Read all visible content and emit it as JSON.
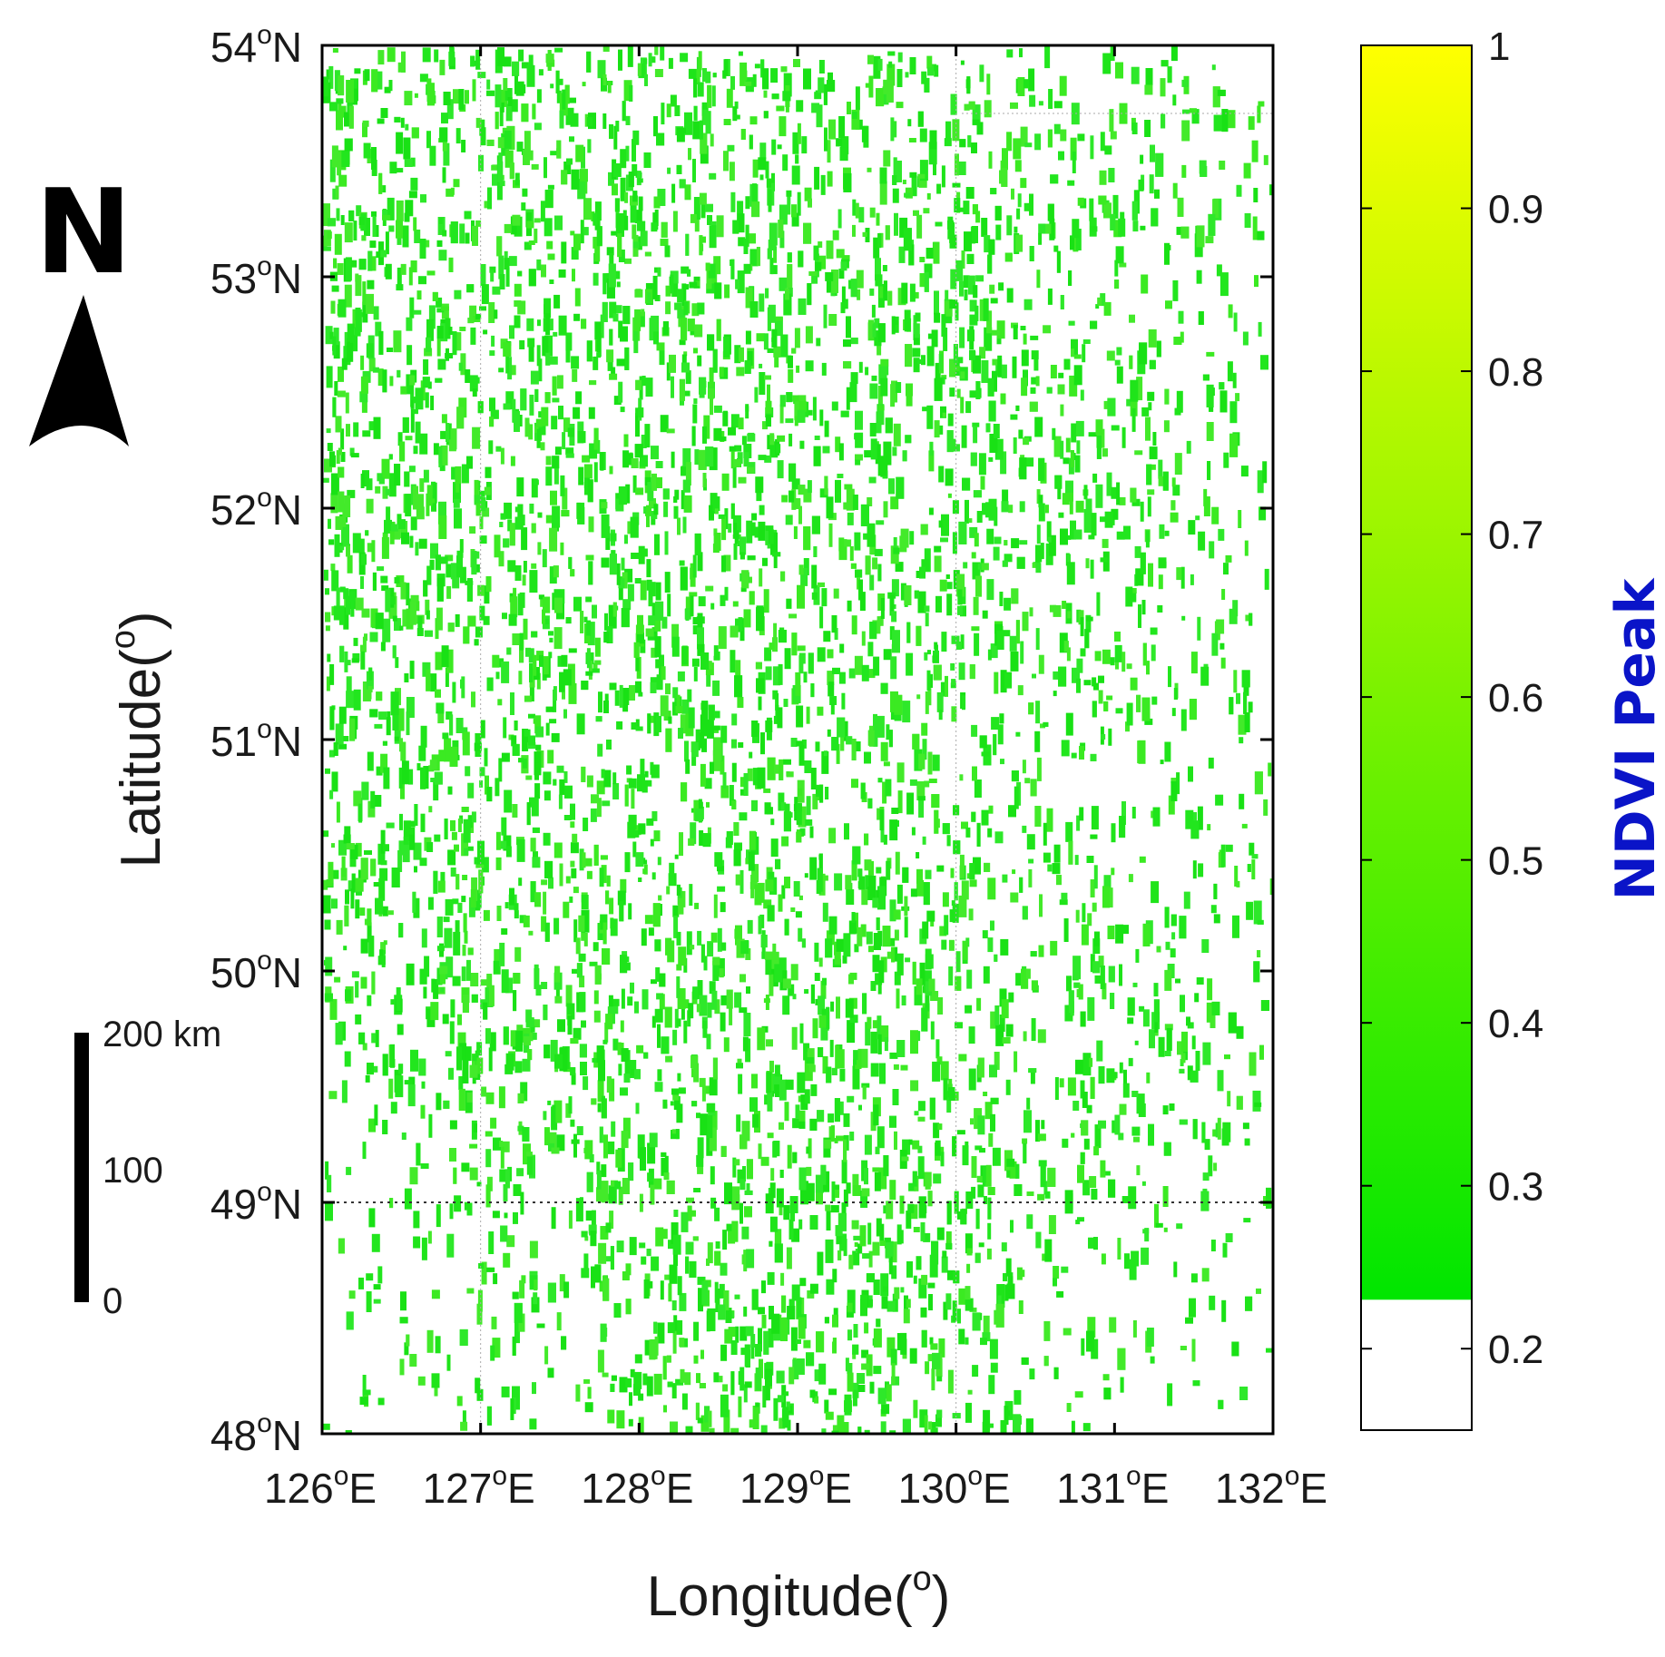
{
  "map": {
    "xaxis": {
      "label": "Longitude(",
      "label_sup": "o",
      "label_close": ")",
      "ticks": [
        {
          "value": 126,
          "text": "126",
          "deg": "o",
          "hemi": "E"
        },
        {
          "value": 127,
          "text": "127",
          "deg": "o",
          "hemi": "E"
        },
        {
          "value": 128,
          "text": "128",
          "deg": "o",
          "hemi": "E"
        },
        {
          "value": 129,
          "text": "129",
          "deg": "o",
          "hemi": "E"
        },
        {
          "value": 130,
          "text": "130",
          "deg": "o",
          "hemi": "E"
        },
        {
          "value": 131,
          "text": "131",
          "deg": "o",
          "hemi": "E"
        },
        {
          "value": 132,
          "text": "132",
          "deg": "o",
          "hemi": "E"
        }
      ],
      "range": [
        126,
        132
      ]
    },
    "yaxis": {
      "label": "Latitude(",
      "label_sup": "o",
      "label_close": ")",
      "ticks": [
        {
          "value": 54,
          "text": "54",
          "deg": "o",
          "hemi": "N"
        },
        {
          "value": 53,
          "text": "53",
          "deg": "o",
          "hemi": "N"
        },
        {
          "value": 52,
          "text": "52",
          "deg": "o",
          "hemi": "N"
        },
        {
          "value": 51,
          "text": "51",
          "deg": "o",
          "hemi": "N"
        },
        {
          "value": 50,
          "text": "50",
          "deg": "o",
          "hemi": "N"
        },
        {
          "value": 49,
          "text": "49",
          "deg": "o",
          "hemi": "N"
        },
        {
          "value": 48,
          "text": "48",
          "deg": "o",
          "hemi": "N"
        }
      ],
      "range": [
        48,
        54
      ]
    },
    "north_arrow": {
      "letter": "N"
    },
    "scale_bar": {
      "labels": [
        {
          "text": "200 km",
          "value": 200
        },
        {
          "text": "100",
          "value": 100
        },
        {
          "text": "0",
          "value": 0
        }
      ]
    },
    "colorbar": {
      "title": "NDVI Peak",
      "title_color": "#0a14c8",
      "range": [
        0.15,
        1.0
      ],
      "threshold": 0.23,
      "below_threshold_color": "#ffffff",
      "color_low": "#00e600",
      "color_high": "#ffff00",
      "ticks": [
        {
          "value": 1,
          "text": "1"
        },
        {
          "value": 0.9,
          "text": "0.9"
        },
        {
          "value": 0.8,
          "text": "0.8"
        },
        {
          "value": 0.7,
          "text": "0.7"
        },
        {
          "value": 0.6,
          "text": "0.6"
        },
        {
          "value": 0.5,
          "text": "0.5"
        },
        {
          "value": 0.4,
          "text": "0.4"
        },
        {
          "value": 0.3,
          "text": "0.3"
        },
        {
          "value": 0.2,
          "text": "0.2"
        }
      ]
    },
    "vegetation_color": "#22e61e",
    "gridline_color": "#888888"
  }
}
